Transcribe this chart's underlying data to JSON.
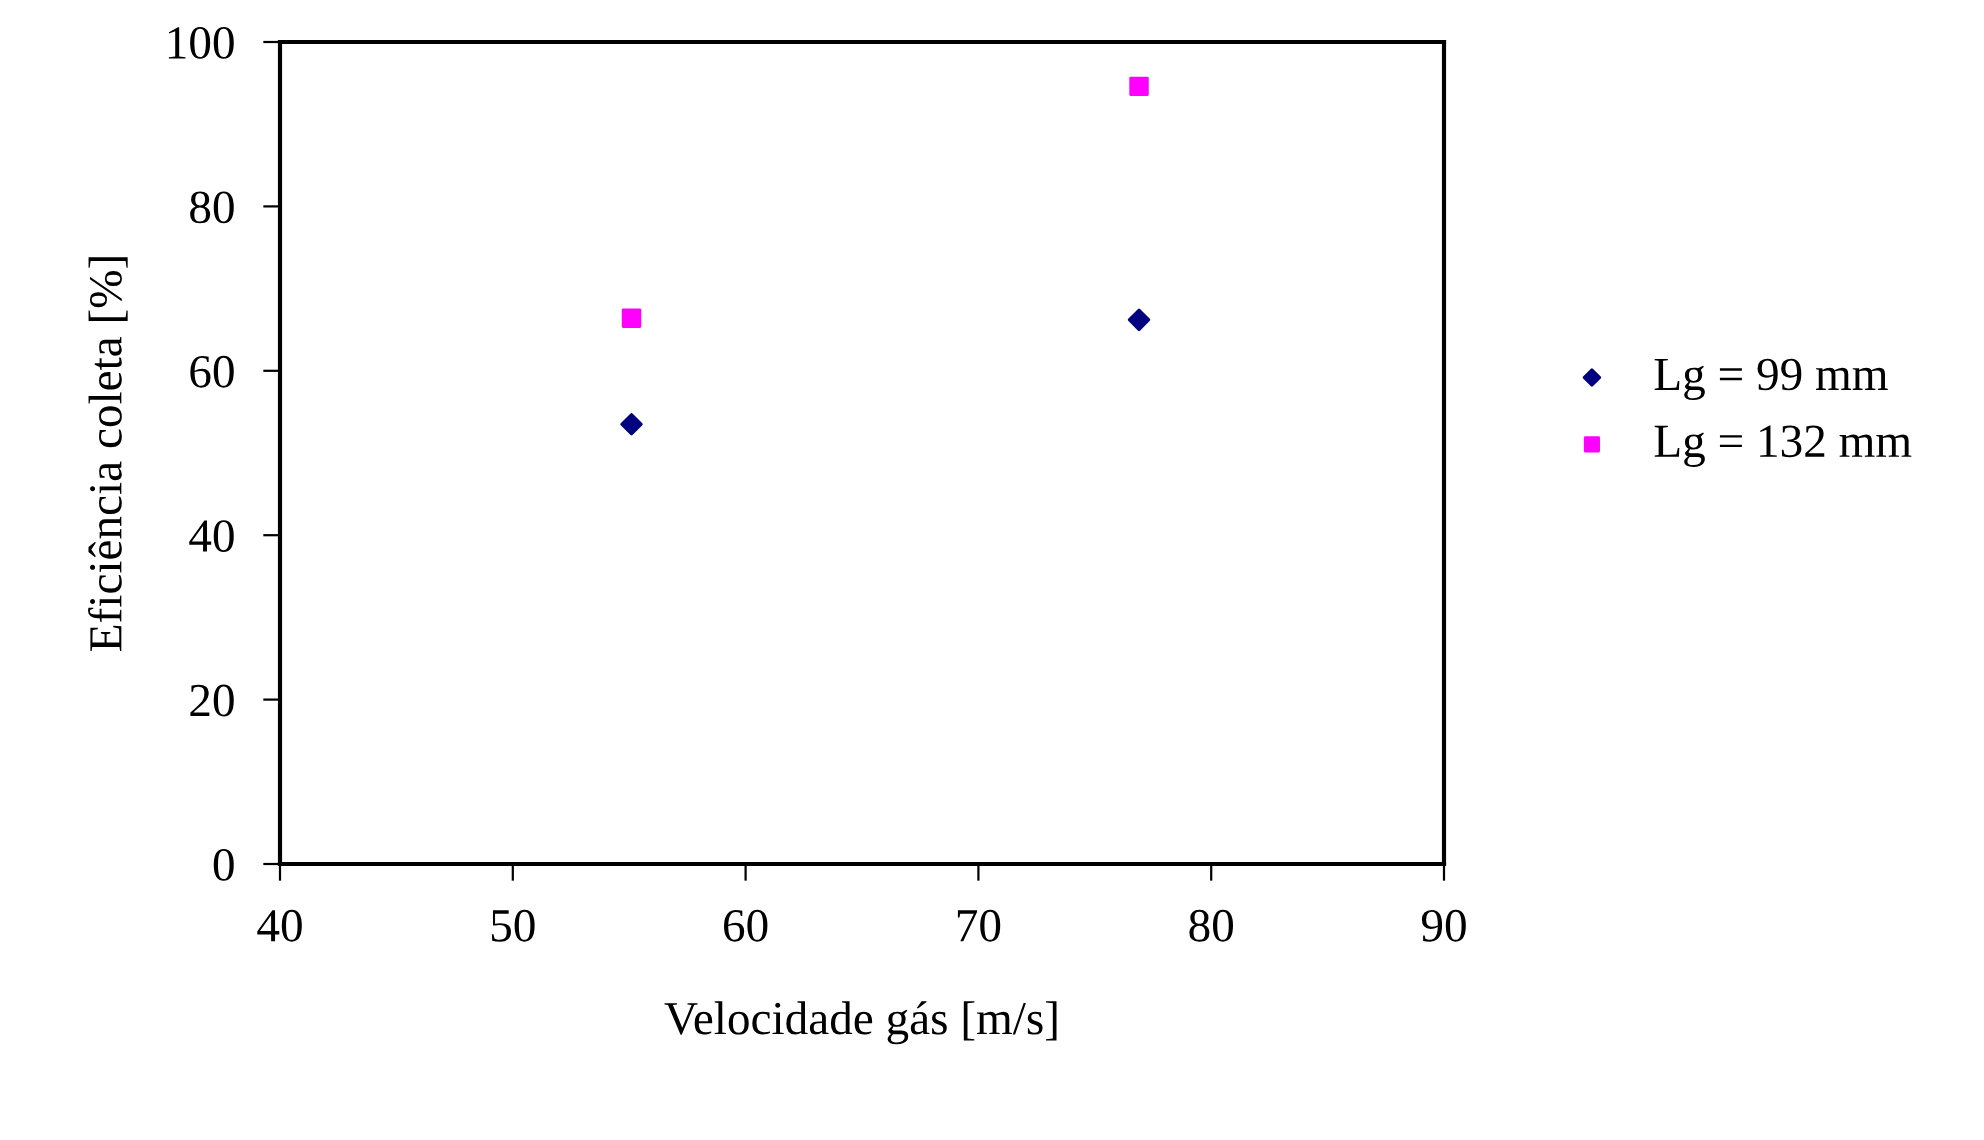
{
  "chart_data": {
    "type": "scatter",
    "xlabel": "Velocidade gás [m/s]",
    "ylabel": "Eficiência coleta [%]",
    "xlim": [
      40,
      90
    ],
    "xticks": [
      40,
      50,
      60,
      70,
      80,
      90
    ],
    "ylim": [
      0,
      100
    ],
    "yticks": [
      0,
      20,
      40,
      60,
      80,
      100
    ],
    "grid": false,
    "legend": "right",
    "x": [
      55.1,
      76.9
    ],
    "series": [
      {
        "name": "Lg = 99 mm",
        "color": "#000080",
        "marker": "diamond",
        "values": [
          53.5,
          66.2
        ]
      },
      {
        "name": "Lg = 132 mm",
        "color": "#ff00ff",
        "marker": "square",
        "values": [
          66.4,
          94.6
        ]
      }
    ]
  }
}
